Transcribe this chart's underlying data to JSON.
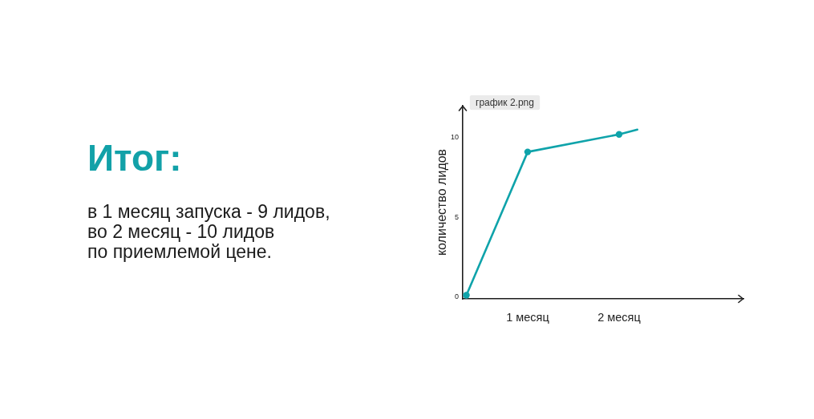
{
  "chart_data": {
    "type": "line",
    "title": "Итог:",
    "subtitle": "в 1 месяц запуска - 9 лидов,\nво 2 месяц - 10 лидов\nпо приемлемой цене.",
    "ylabel": "количество лидов",
    "annotations": [
      "график 2.png"
    ],
    "series": [
      {
        "color": "#0fa3aa",
        "x": [
          0.33,
          1,
          2
        ],
        "values": [
          0.1,
          9.1,
          10.2
        ],
        "marker": "circle"
      },
      {
        "color": "#0fa3aa",
        "x": [
          2,
          2.2
        ],
        "values": [
          10.2,
          10.5
        ],
        "marker": "none"
      }
    ],
    "xlim": [
      0.29,
      3.36
    ],
    "xticks": [
      {
        "value": 1,
        "label": "1 месяц"
      },
      {
        "value": 2,
        "label": "2 месяц"
      }
    ],
    "ylim": [
      -0.13,
      12
    ],
    "yticks": [
      0,
      5,
      10
    ]
  }
}
